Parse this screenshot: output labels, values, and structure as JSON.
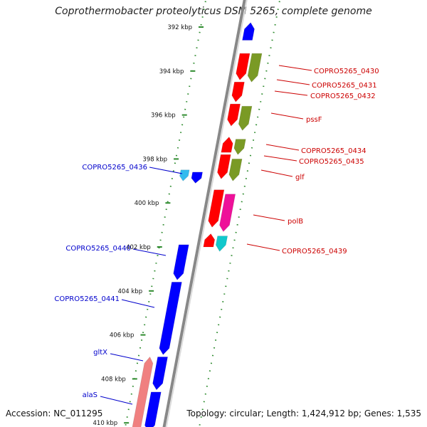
{
  "title": "Coprothermobacter proteolyticus DSM 5265, complete genome",
  "footer": {
    "accession": "Accession: NC_011295",
    "info": "Topology: circular; Length: 1,424,912 bp; Genes: 1,535"
  },
  "ticks": [
    {
      "label": "392 kbp",
      "kbp": 392
    },
    {
      "label": "394 kbp",
      "kbp": 394
    },
    {
      "label": "396 kbp",
      "kbp": 396
    },
    {
      "label": "398 kbp",
      "kbp": 398
    },
    {
      "label": "400 kbp",
      "kbp": 400
    },
    {
      "label": "402 kbp",
      "kbp": 402
    },
    {
      "label": "404 kbp",
      "kbp": 404
    },
    {
      "label": "406 kbp",
      "kbp": 406
    },
    {
      "label": "408 kbp",
      "kbp": 408
    },
    {
      "label": "410 kbp",
      "kbp": 410
    }
  ],
  "genes": [
    {
      "lane": "out",
      "start": 391.8,
      "end": 392.6,
      "strand": -1,
      "color": "#0000ff"
    },
    {
      "lane": "out",
      "start": 393.2,
      "end": 394.4,
      "strand": 1,
      "color": "#ff0000"
    },
    {
      "lane": "out2",
      "start": 393.2,
      "end": 394.5,
      "strand": 1,
      "color": "#7a9a25"
    },
    {
      "lane": "out",
      "start": 394.5,
      "end": 395.4,
      "strand": 1,
      "color": "#ff0000"
    },
    {
      "lane": "out",
      "start": 395.5,
      "end": 396.5,
      "strand": 1,
      "color": "#ff0000"
    },
    {
      "lane": "out2",
      "start": 395.6,
      "end": 396.7,
      "strand": 1,
      "color": "#7a9a25"
    },
    {
      "lane": "out",
      "start": 397.0,
      "end": 397.7,
      "strand": -1,
      "color": "#ff0000"
    },
    {
      "lane": "out2",
      "start": 397.1,
      "end": 397.8,
      "strand": 1,
      "color": "#7a9a25"
    },
    {
      "lane": "out",
      "start": 397.8,
      "end": 398.9,
      "strand": 1,
      "color": "#ff0000"
    },
    {
      "lane": "out2",
      "start": 398.0,
      "end": 399.0,
      "strand": 1,
      "color": "#7a9a25"
    },
    {
      "lane": "out",
      "start": 399.4,
      "end": 401.1,
      "strand": 1,
      "color": "#ff0000"
    },
    {
      "lane": "out2",
      "start": 399.6,
      "end": 401.3,
      "strand": 1,
      "color": "#ee1199"
    },
    {
      "lane": "out",
      "start": 401.4,
      "end": 402.0,
      "strand": -1,
      "color": "#ff0000"
    },
    {
      "lane": "out2",
      "start": 401.5,
      "end": 402.2,
      "strand": 1,
      "color": "#11c8cc"
    },
    {
      "lane": "in2",
      "start": 398.5,
      "end": 399.0,
      "strand": 1,
      "color": "#33bbee"
    },
    {
      "lane": "in",
      "start": 398.6,
      "end": 399.1,
      "strand": 1,
      "color": "#0000ff"
    },
    {
      "lane": "in",
      "start": 401.9,
      "end": 403.5,
      "strand": 1,
      "color": "#0000ff"
    },
    {
      "lane": "in",
      "start": 403.6,
      "end": 406.9,
      "strand": 1,
      "color": "#0000ff"
    },
    {
      "lane": "in2",
      "start": 407.0,
      "end": 410.4,
      "strand": -1,
      "color": "#f08080"
    },
    {
      "lane": "in",
      "start": 407.0,
      "end": 408.5,
      "strand": 1,
      "color": "#0000ff"
    },
    {
      "lane": "in",
      "start": 408.6,
      "end": 410.4,
      "strand": 1,
      "color": "#0000ff"
    }
  ],
  "labels": [
    {
      "text": "COPRO5265_0430",
      "side": "right",
      "color": "#cc0000"
    },
    {
      "text": "COPRO5265_0431",
      "side": "right",
      "color": "#cc0000"
    },
    {
      "text": "COPRO5265_0432",
      "side": "right",
      "color": "#cc0000"
    },
    {
      "text": "pssF",
      "side": "right",
      "color": "#cc0000"
    },
    {
      "text": "COPRO5265_0434",
      "side": "right",
      "color": "#cc0000"
    },
    {
      "text": "COPRO5265_0435",
      "side": "right",
      "color": "#cc0000"
    },
    {
      "text": "glf",
      "side": "right",
      "color": "#cc0000"
    },
    {
      "text": "polB",
      "side": "right",
      "color": "#cc0000"
    },
    {
      "text": "COPRO5265_0439",
      "side": "right",
      "color": "#cc0000"
    },
    {
      "text": "COPRO5265_0436",
      "side": "left",
      "color": "#0000cc"
    },
    {
      "text": "COPRO5265_0440",
      "side": "left",
      "color": "#0000cc"
    },
    {
      "text": "COPRO5265_0441",
      "side": "left",
      "color": "#0000cc"
    },
    {
      "text": "gltX",
      "side": "left",
      "color": "#0000cc"
    },
    {
      "text": "alaS",
      "side": "left",
      "color": "#0000cc"
    }
  ]
}
